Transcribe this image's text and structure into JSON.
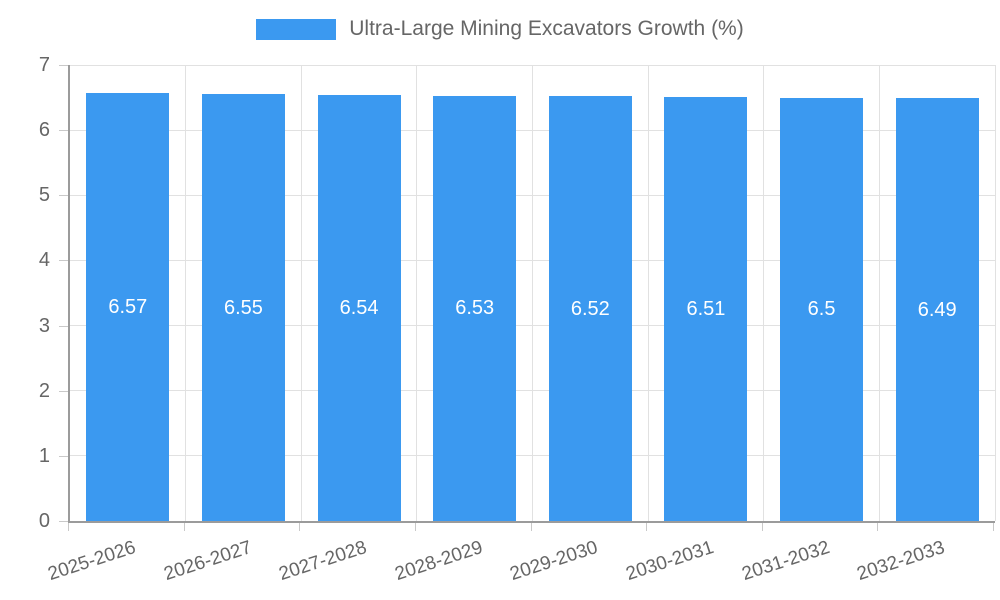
{
  "legend": {
    "label": "Ultra-Large Mining Excavators Growth (%)"
  },
  "chart_data": {
    "type": "bar",
    "title": "",
    "series_name": "Ultra-Large Mining Excavators Growth (%)",
    "categories": [
      "2025-2026",
      "2026-2027",
      "2027-2028",
      "2028-2029",
      "2029-2030",
      "2030-2031",
      "2031-2032",
      "2032-2033"
    ],
    "values": [
      6.57,
      6.55,
      6.54,
      6.53,
      6.52,
      6.51,
      6.5,
      6.49
    ],
    "data_labels": [
      "6.57",
      "6.55",
      "6.54",
      "6.53",
      "6.52",
      "6.51",
      "6.5",
      "6.49"
    ],
    "xlabel": "",
    "ylabel": "",
    "ylim": [
      0,
      7
    ],
    "yticks": [
      0,
      1,
      2,
      3,
      4,
      5,
      6,
      7
    ],
    "grid": true,
    "legend_position": "top",
    "colors": {
      "bar": "#3b99f0",
      "value_label": "#ffffff",
      "axis_text": "#666666",
      "gridline": "#e1e1e1",
      "axis_line": "#9b9b9b",
      "tick": "#c9c9c9",
      "background": "#ffffff"
    }
  }
}
